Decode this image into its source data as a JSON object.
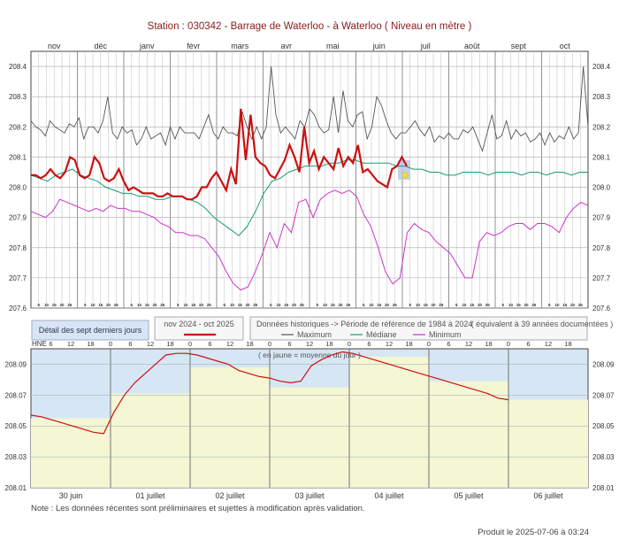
{
  "header": {
    "station_line": "Station : 030342      -   Barrage de Waterloo - à Waterloo   ( Niveau en mètre )"
  },
  "colors": {
    "recent": "#cc1111",
    "maximum": "#555555",
    "mediane": "#1a9a7a",
    "minimum": "#cc33cc",
    "grid": "#c8c8c8",
    "blue_band": "#d6e6f4",
    "yellow_fill": "#f4f6d4",
    "detail_line": "#cc1111"
  },
  "legend": {
    "detail_box": "Détail des sept derniers jours",
    "recent_title": "nov 2024 - oct 2025",
    "hist_title": "Données historiques -> Période de référence  de 1984 à 2024",
    "hist_equiv": "( équivalent à 39 années documentées )",
    "maximum": "Maximum",
    "mediane": "Médiane",
    "minimum": "Minimum"
  },
  "detail_top": {
    "hne_label": "HNE",
    "hour_ticks": [
      "6",
      "12",
      "18",
      "0",
      "6",
      "12",
      "18",
      "0",
      "6",
      "12",
      "18",
      "0",
      "6",
      "12",
      "18",
      "0",
      "6",
      "12",
      "18",
      "0",
      "6",
      "12",
      "18",
      "0",
      "6",
      "12",
      "18"
    ],
    "note_inside": "( en jaune = moyenne du jour )"
  },
  "note": "Note : Les données récentes sont préliminaires et sujettes à modification après validation.",
  "produced": "Produit le 2025-07-06 à 03:24",
  "chart_data": [
    {
      "type": "line",
      "title": "Station : 030342      -   Barrage de Waterloo - à Waterloo   ( Niveau en mètre )",
      "x_month_labels": [
        "nov",
        "déc",
        "janv",
        "févr",
        "mars",
        "avr",
        "mai",
        "juin",
        "juil",
        "août",
        "sept",
        "oct"
      ],
      "day_tick_labels": [
        "5",
        "10",
        "15",
        "20",
        "25"
      ],
      "y_ticks": [
        "207.6",
        "207.7",
        "207.8",
        "207.9",
        "208.0",
        "208.1",
        "208.2",
        "208.3",
        "208.4"
      ],
      "ylim": [
        207.6,
        208.45
      ],
      "grid": true,
      "series": [
        {
          "name": "Maximum",
          "values": [
            208.22,
            208.2,
            208.19,
            208.17,
            208.22,
            208.2,
            208.19,
            208.18,
            208.21,
            208.2,
            208.23,
            208.16,
            208.2,
            208.2,
            208.18,
            208.22,
            208.3,
            208.18,
            208.16,
            208.2,
            208.18,
            208.19,
            208.14,
            208.16,
            208.2,
            208.16,
            208.17,
            208.18,
            208.14,
            208.2,
            208.16,
            208.2,
            208.18,
            208.18,
            208.18,
            208.16,
            208.2,
            208.24,
            208.18,
            208.16,
            208.2,
            208.18,
            208.18,
            208.17,
            208.25,
            208.2,
            208.16,
            208.2,
            208.16,
            208.2,
            208.4,
            208.24,
            208.18,
            208.2,
            208.18,
            208.16,
            208.22,
            208.2,
            208.26,
            208.24,
            208.2,
            208.18,
            208.19,
            208.3,
            208.18,
            208.32,
            208.22,
            208.2,
            208.24,
            208.25,
            208.16,
            208.2,
            208.3,
            208.27,
            208.22,
            208.18,
            208.16,
            208.18,
            208.18,
            208.2,
            208.22,
            208.19,
            208.17,
            208.2,
            208.15,
            208.17,
            208.16,
            208.18,
            208.16,
            208.16,
            208.19,
            208.18,
            208.2,
            208.16,
            208.12,
            208.18,
            208.24,
            208.16,
            208.17,
            208.22,
            208.16,
            208.19,
            208.17,
            208.18,
            208.15,
            208.16,
            208.18,
            208.14,
            208.18,
            208.15,
            208.17,
            208.16,
            208.2,
            208.16,
            208.18,
            208.4,
            208.2
          ]
        },
        {
          "name": "Médiane",
          "values": [
            208.04,
            208.03,
            208.02,
            208.04,
            208.05,
            208.06,
            208.04,
            208.03,
            208.02,
            208.0,
            207.99,
            207.98,
            207.98,
            207.97,
            207.97,
            207.96,
            207.96,
            207.97,
            207.97,
            207.96,
            207.95,
            207.93,
            207.9,
            207.88,
            207.86,
            207.84,
            207.87,
            207.92,
            207.98,
            208.02,
            208.03,
            208.05,
            208.06,
            208.07,
            208.07,
            208.07,
            208.08,
            208.08,
            208.09,
            208.09,
            208.08,
            208.08,
            208.08,
            208.08,
            208.07,
            208.07,
            208.06,
            208.06,
            208.05,
            208.05,
            208.04,
            208.04,
            208.05,
            208.05,
            208.05,
            208.04,
            208.05,
            208.05,
            208.05,
            208.04,
            208.05,
            208.05,
            208.04,
            208.05,
            208.05,
            208.04,
            208.05,
            208.05
          ]
        },
        {
          "name": "Minimum",
          "values": [
            207.92,
            207.91,
            207.9,
            207.92,
            207.96,
            207.95,
            207.94,
            207.93,
            207.92,
            207.93,
            207.92,
            207.94,
            207.93,
            207.93,
            207.92,
            207.92,
            207.91,
            207.9,
            207.88,
            207.87,
            207.85,
            207.85,
            207.84,
            207.84,
            207.83,
            207.8,
            207.77,
            207.72,
            207.68,
            207.66,
            207.67,
            207.72,
            207.78,
            207.85,
            207.8,
            207.88,
            207.85,
            207.95,
            207.96,
            207.9,
            207.96,
            207.98,
            207.99,
            207.98,
            207.99,
            207.97,
            207.91,
            207.87,
            207.8,
            207.72,
            207.68,
            207.7,
            207.85,
            207.88,
            207.86,
            207.85,
            207.82,
            207.8,
            207.78,
            207.74,
            207.7,
            207.7,
            207.82,
            207.85,
            207.84,
            207.85,
            207.87,
            207.88,
            207.88,
            207.86,
            207.88,
            207.88,
            207.87,
            207.85,
            207.9,
            207.93,
            207.95,
            207.94
          ]
        },
        {
          "name": "nov 2024 - oct 2025",
          "values": [
            208.04,
            208.04,
            208.03,
            208.04,
            208.06,
            208.04,
            208.03,
            208.05,
            208.1,
            208.09,
            208.04,
            208.03,
            208.04,
            208.1,
            208.08,
            208.03,
            208.02,
            208.03,
            208.06,
            208.02,
            207.99,
            208.0,
            207.99,
            207.98,
            207.98,
            207.98,
            207.97,
            207.97,
            207.98,
            207.97,
            207.97,
            207.97,
            207.96,
            207.96,
            207.97,
            208.0,
            208.0,
            208.03,
            208.05,
            208.02,
            207.99,
            208.06,
            208.01,
            208.26,
            208.09,
            208.24,
            208.1,
            208.08,
            208.07,
            208.04,
            208.03,
            208.06,
            208.09,
            208.14,
            208.1,
            208.05,
            208.2,
            208.08,
            208.12,
            208.06,
            208.1,
            208.08,
            208.06,
            208.13,
            208.07,
            208.1,
            208.08,
            208.14,
            208.05,
            208.06,
            208.04,
            208.02,
            208.01,
            208.0,
            208.06,
            208.07,
            208.1,
            208.07
          ]
        }
      ]
    },
    {
      "type": "line",
      "title": "Détail des sept derniers jours",
      "x_day_labels": [
        "30 juin",
        "01 juillet",
        "02 juillet",
        "03 juillet",
        "04 juillet",
        "05 juillet",
        "06 juillet"
      ],
      "y_ticks": [
        "208.01",
        "208.03",
        "208.05",
        "208.07",
        "208.09"
      ],
      "ylim": [
        208.01,
        208.1
      ],
      "daily_means": [
        208.055,
        208.071,
        208.088,
        208.075,
        208.095,
        208.079,
        208.067
      ],
      "series": [
        {
          "name": "niveau",
          "values": [
            208.057,
            208.056,
            208.054,
            208.052,
            208.05,
            208.048,
            208.046,
            208.045,
            208.059,
            208.07,
            208.078,
            208.084,
            208.09,
            208.096,
            208.097,
            208.097,
            208.096,
            208.094,
            208.092,
            208.09,
            208.086,
            208.084,
            208.082,
            208.081,
            208.079,
            208.078,
            208.079,
            208.089,
            208.093,
            208.096,
            208.098,
            208.097,
            208.095,
            208.093,
            208.091,
            208.089,
            208.087,
            208.085,
            208.083,
            208.081,
            208.079,
            208.077,
            208.075,
            208.073,
            208.071,
            208.068,
            208.067
          ]
        }
      ]
    }
  ]
}
